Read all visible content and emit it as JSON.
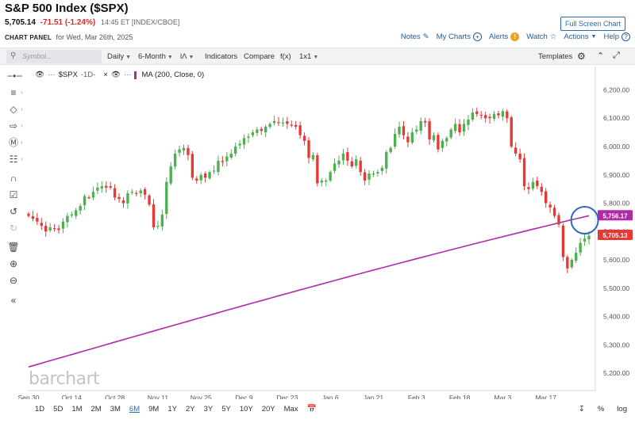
{
  "header": {
    "title": "S&P 500 Index ($SPX)",
    "price": "5,705.14",
    "change": "-71.51 (-1.24%)",
    "meta": "14:45 ET [INDEX/CBOE]",
    "fullscreen_label": "Full Screen Chart",
    "panel_label": "CHART PANEL",
    "panel_date": "for Wed, Mar 26th, 2025"
  },
  "links": {
    "notes": "Notes",
    "my_charts": "My Charts",
    "alerts": "Alerts",
    "watch": "Watch",
    "actions": "Actions",
    "help": "Help"
  },
  "toolbar": {
    "search_placeholder": "Symbol...",
    "interval": "Daily",
    "period": "6-Month",
    "chart_type": "ƖɅ",
    "indicators": "Indicators",
    "compare": "Compare",
    "fx": "f(x)",
    "layout": "1x1",
    "templates": "Templates"
  },
  "legend": {
    "symbol": "$SPX",
    "symbol_interval": "-1D-",
    "ma": "MA (200, Close, 0)"
  },
  "colors": {
    "up": "#4caf50",
    "down": "#e53935",
    "ma": "#b02aa8",
    "price_tag": "#e53935",
    "ma_tag": "#b02aa8",
    "highlight": "#2a6bb8"
  },
  "logo": "barchart",
  "ranges": [
    "1D",
    "5D",
    "1M",
    "2M",
    "3M",
    "6M",
    "9M",
    "1Y",
    "2Y",
    "3Y",
    "5Y",
    "10Y",
    "20Y",
    "Max"
  ],
  "active_range": "6M",
  "bottom_right": [
    "%",
    "log"
  ],
  "chart_data": {
    "type": "candlestick",
    "title": "S&P 500 Index ($SPX)",
    "ylim": [
      5150,
      6260
    ],
    "y_ticks": [
      "6,200.00",
      "6,100.00",
      "6,000.00",
      "5,900.00",
      "5,800.00",
      "5,700.00",
      "5,600.00",
      "5,500.00",
      "5,400.00",
      "5,300.00",
      "5,200.00"
    ],
    "y_tick_values": [
      6200,
      6100,
      6000,
      5900,
      5800,
      5700,
      5600,
      5500,
      5400,
      5300,
      5200
    ],
    "x_tick_labels": [
      "Sep 30",
      "Oct 14",
      "Oct 28",
      "Nov 11",
      "Nov 25",
      "Dec 9",
      "Dec 23",
      "Jan 6",
      "Jan 21",
      "Feb 3",
      "Feb 18",
      "Mar 3",
      "Mar 17"
    ],
    "x_tick_index": [
      0,
      10,
      20,
      30,
      40,
      50,
      60,
      70,
      80,
      90,
      100,
      110,
      120
    ],
    "price_label": "5,705.13",
    "price_value": 5705,
    "ma_label": "5,756.17",
    "ma_value": 5756,
    "series": [
      {
        "name": "$SPX",
        "closes": [
          5755,
          5745,
          5735,
          5720,
          5700,
          5715,
          5710,
          5705,
          5735,
          5755,
          5760,
          5775,
          5790,
          5825,
          5820,
          5840,
          5855,
          5860,
          5855,
          5855,
          5820,
          5815,
          5800,
          5835,
          5840,
          5835,
          5845,
          5830,
          5795,
          5715,
          5720,
          5760,
          5875,
          5930,
          5975,
          5990,
          5995,
          5970,
          5890,
          5880,
          5900,
          5890,
          5910,
          5915,
          5950,
          5945,
          5965,
          5975,
          6000,
          6010,
          6030,
          6035,
          6050,
          6060,
          6055,
          6070,
          6080,
          6090,
          6085,
          6085,
          6080,
          6075,
          6070,
          6040,
          6020,
          5960,
          5970,
          5870,
          5880,
          5880,
          5910,
          5940,
          5950,
          5975,
          5950,
          5930,
          5955,
          5910,
          5880,
          5905,
          5905,
          5910,
          5925,
          5980,
          5995,
          6045,
          6070,
          6040,
          6015,
          6050,
          6060,
          6090,
          6085,
          6025,
          6040,
          5990,
          6020,
          6030,
          6060,
          6080,
          6050,
          6080,
          6095,
          6120,
          6115,
          6110,
          6100,
          6100,
          6115,
          6110,
          6125,
          6100,
          6000,
          5975,
          5955,
          5860,
          5850,
          5875,
          5860,
          5840,
          5800,
          5785,
          5755,
          5725,
          5610,
          5570,
          5600,
          5625,
          5660,
          5675,
          5685
        ]
      }
    ],
    "ma_series": {
      "name": "MA (200, Close, 0)",
      "start": 5222,
      "end": 5756
    }
  }
}
